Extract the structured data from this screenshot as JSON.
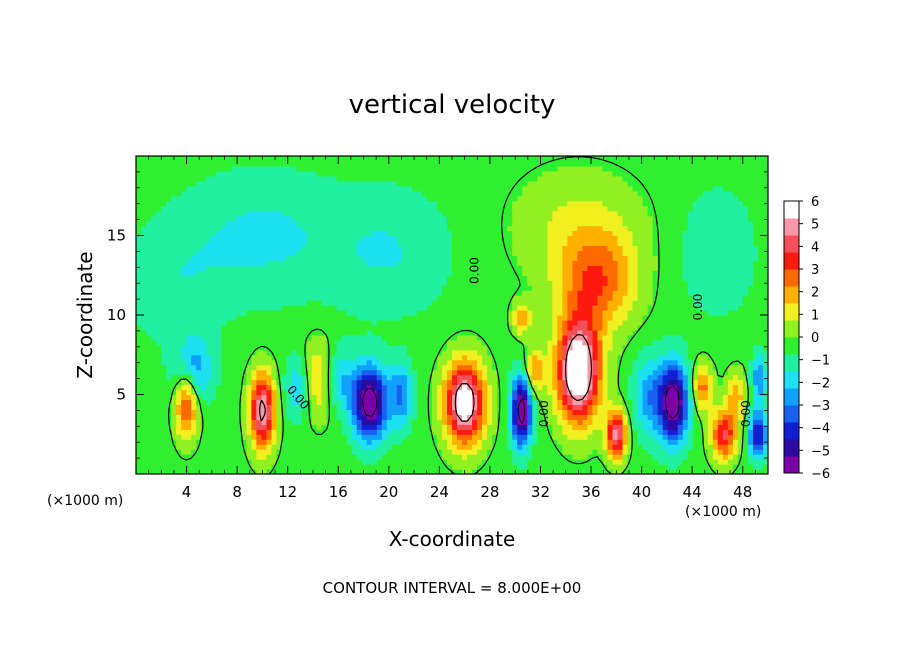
{
  "chart_data": {
    "type": "heatmap",
    "title": "vertical velocity",
    "xlabel": "X-coordinate",
    "ylabel": "Z-coordinate",
    "x_unit_left": "(×1000 m)",
    "x_unit_right": "(×1000 m)",
    "footer": "CONTOUR INTERVAL = 8.000E+00",
    "xlim": [
      0,
      50
    ],
    "ylim": [
      0,
      20
    ],
    "x_ticks": [
      4,
      8,
      12,
      16,
      20,
      24,
      28,
      32,
      36,
      40,
      44,
      48
    ],
    "x_tick_labels": [
      "4",
      "8",
      "12",
      "16",
      "20",
      "24",
      "28",
      "32",
      "36",
      "40",
      "44",
      "48"
    ],
    "y_ticks": [
      5,
      10,
      15
    ],
    "y_tick_labels": [
      "5",
      "10",
      "15"
    ],
    "colorbar": {
      "ticks": [
        6,
        5,
        4,
        3,
        2,
        1,
        0,
        -1,
        -2,
        -3,
        -4,
        -5,
        -6
      ],
      "tick_labels": [
        "6",
        "5",
        "4",
        "3",
        "2",
        "1",
        "0",
        "−1",
        "−2",
        "−3",
        "−4",
        "−5",
        "−6"
      ],
      "range": [
        -6.5,
        6.5
      ],
      "colors": [
        "#7b00a8",
        "#2a0aa0",
        "#1020d0",
        "#1a60f0",
        "#10a0ff",
        "#1de0f0",
        "#20f0a0",
        "#2ff030",
        "#90f020",
        "#f0f020",
        "#ffb000",
        "#ff6a00",
        "#ff1a10",
        "#f4505a",
        "#f898a8",
        "#ffffff"
      ]
    },
    "cells": [
      {
        "x": 4,
        "z": 4.5,
        "w": 4.5,
        "sx": 0.9,
        "sz": 2.2
      },
      {
        "x": 4.5,
        "z": 6.5,
        "w": -3,
        "sx": 1.5,
        "sz": 2.0
      },
      {
        "x": 10,
        "z": 4,
        "w": 6.5,
        "sx": 1.0,
        "sz": 2.4
      },
      {
        "x": 12.8,
        "z": 5.5,
        "w": -2.5,
        "sx": 1.0,
        "sz": 2.0
      },
      {
        "x": 14.5,
        "z": 6,
        "w": 2.5,
        "sx": 1.5,
        "sz": 2.5
      },
      {
        "x": 16,
        "z": 6,
        "w": -2.5,
        "sx": 1.2,
        "sz": 2.0
      },
      {
        "x": 18.5,
        "z": 4.5,
        "w": -7,
        "sx": 1.4,
        "sz": 2.3
      },
      {
        "x": 21,
        "z": 5,
        "w": -3,
        "sx": 0.9,
        "sz": 2.0
      },
      {
        "x": 26,
        "z": 4.5,
        "w": 7.5,
        "sx": 1.6,
        "sz": 2.6
      },
      {
        "x": 30.5,
        "z": 4,
        "w": -7,
        "sx": 0.8,
        "sz": 2.2
      },
      {
        "x": 31.5,
        "z": 6.5,
        "w": 3,
        "sx": 0.8,
        "sz": 1.5
      },
      {
        "x": 30.5,
        "z": 9.8,
        "w": 3,
        "sx": 0.7,
        "sz": 1.0
      },
      {
        "x": 35,
        "z": 6.5,
        "w": 8.5,
        "sx": 1.7,
        "sz": 3.2
      },
      {
        "x": 36.5,
        "z": 12,
        "w": 3.5,
        "sx": 3.0,
        "sz": 3.0
      },
      {
        "x": 35,
        "z": 15.5,
        "w": 1.5,
        "sx": 5.0,
        "sz": 3.5
      },
      {
        "x": 38,
        "z": 2.5,
        "w": 6,
        "sx": 0.8,
        "sz": 1.5
      },
      {
        "x": 40.5,
        "z": 5,
        "w": -2.5,
        "sx": 1.2,
        "sz": 2.5
      },
      {
        "x": 42.5,
        "z": 4.5,
        "w": -7,
        "sx": 1.2,
        "sz": 2.5
      },
      {
        "x": 44.8,
        "z": 5.5,
        "w": 3.5,
        "sx": 0.8,
        "sz": 1.5
      },
      {
        "x": 46.5,
        "z": 2.5,
        "w": 5,
        "sx": 1.0,
        "sz": 1.6
      },
      {
        "x": 47.5,
        "z": 5,
        "w": 2.5,
        "sx": 0.8,
        "sz": 1.5
      },
      {
        "x": 49.2,
        "z": 2.5,
        "w": -5,
        "sx": 0.7,
        "sz": 1.5
      },
      {
        "x": 49.3,
        "z": 6,
        "w": -3,
        "sx": 0.6,
        "sz": 1.5
      },
      {
        "x": 10,
        "z": 15,
        "w": -1.5,
        "sx": 6.0,
        "sz": 4.0
      },
      {
        "x": 20,
        "z": 14,
        "w": -1.3,
        "sx": 5.0,
        "sz": 4.0
      },
      {
        "x": 3,
        "z": 12,
        "w": -1.0,
        "sx": 4.0,
        "sz": 4.0
      },
      {
        "x": 46,
        "z": 14,
        "w": -1.2,
        "sx": 3.0,
        "sz": 4.0
      }
    ],
    "contour_labels": [
      {
        "text": "0.00",
        "x": 26.8,
        "z": 12.8,
        "angle": -90
      },
      {
        "text": "0.00",
        "x": 44.5,
        "z": 10.5,
        "angle": -90
      },
      {
        "text": "0.00",
        "x": 12.8,
        "z": 4.8,
        "angle": 50
      },
      {
        "text": "0.00",
        "x": 32.3,
        "z": 3.8,
        "angle": -90
      },
      {
        "text": "0.00",
        "x": 48.3,
        "z": 3.8,
        "angle": -90
      }
    ]
  }
}
